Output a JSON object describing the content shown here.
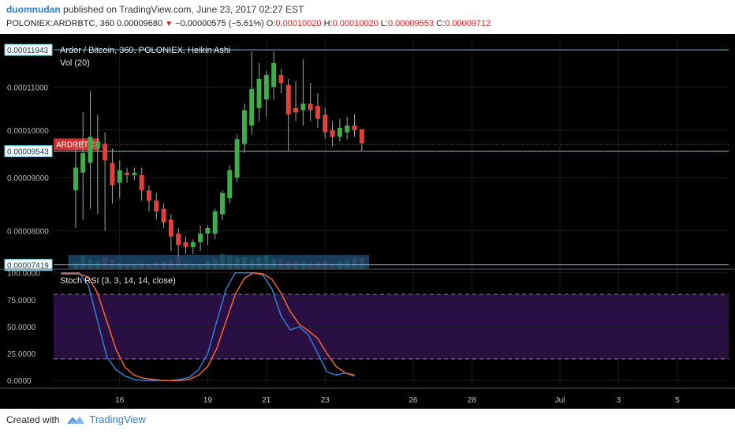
{
  "header": {
    "user": "duomnudan",
    "published_text": "published on TradingView.com, June 23, 2017 02:27 EST",
    "symbol": "POLONIEX:ARDRBTC, 360",
    "last": "0.00009680",
    "change": "−0.00000575 (−5.61%)",
    "open_label": "O:",
    "open": "0.00010020",
    "high_label": "H:",
    "high": "0.00010020",
    "low_label": "L:",
    "low": "0.00009553",
    "close_label": "C:",
    "close": "0.00009712"
  },
  "main_legend": {
    "title": "Ardor / Bitcoin, 360, POLONIEX, Heikin Ashi",
    "vol": "Vol (20)"
  },
  "rsi_legend": {
    "title": "Stoch RSI (3, 3, 14, 14, close)"
  },
  "price_tag": "ARDRBTC",
  "footer": {
    "created": "Created with",
    "brand": "TradingView"
  },
  "colors": {
    "bg": "#000000",
    "grid": "#1c1c1c",
    "up": "#3fae49",
    "down": "#e0413c",
    "k_line": "#2d7fd8",
    "d_line": "#f2672c",
    "rsi_band": "#2a0f45",
    "hline": "#5fd0e8",
    "axis_text": "#b8b8b8"
  },
  "chart_data": [
    {
      "type": "candlestick",
      "name": "ARDRBTC Heikin Ashi",
      "price_axis": {
        "ticks": [
          "0.00011000",
          "0.00010000",
          "0.00009000",
          "0.00008000"
        ],
        "ylim": [
          7.35e-05,
          0.000122
        ],
        "log_scale": true
      },
      "horizontal_lines": [
        {
          "label": "0.00011943",
          "value": 0.00011943
        },
        {
          "label": "0.00009543",
          "value": 9.543e-05
        },
        {
          "label": "0.00007419",
          "value": 7.419e-05
        }
      ],
      "last_price_line": 9.68e-05,
      "x_ticks": [
        {
          "label": "16",
          "i": 6
        },
        {
          "label": "19",
          "i": 18
        },
        {
          "label": "21",
          "i": 26
        },
        {
          "label": "23",
          "i": 34
        },
        {
          "label": "26",
          "i": 46
        },
        {
          "label": "28",
          "i": 54
        },
        {
          "label": "Jul",
          "i": 66
        },
        {
          "label": "3",
          "i": 74
        },
        {
          "label": "5",
          "i": 82
        }
      ],
      "x_range": [
        -3,
        89
      ],
      "candles": [
        {
          "o": 8.75,
          "h": 9.7,
          "l": 8.05,
          "c": 9.2
        },
        {
          "o": 9.1,
          "h": 10.4,
          "l": 8.2,
          "c": 9.5
        },
        {
          "o": 9.3,
          "h": 10.9,
          "l": 8.4,
          "c": 9.85
        },
        {
          "o": 9.6,
          "h": 10.35,
          "l": 8.3,
          "c": 9.75
        },
        {
          "o": 9.7,
          "h": 9.95,
          "l": 8.0,
          "c": 9.35
        },
        {
          "o": 9.3,
          "h": 9.6,
          "l": 8.5,
          "c": 8.85
        },
        {
          "o": 8.9,
          "h": 9.35,
          "l": 8.6,
          "c": 9.15
        },
        {
          "o": 9.1,
          "h": 9.2,
          "l": 8.9,
          "c": 9.05
        },
        {
          "o": 9.05,
          "h": 9.2,
          "l": 8.95,
          "c": 9.1
        },
        {
          "o": 9.05,
          "h": 9.2,
          "l": 8.55,
          "c": 8.75
        },
        {
          "o": 8.75,
          "h": 8.85,
          "l": 8.35,
          "c": 8.55
        },
        {
          "o": 8.55,
          "h": 8.7,
          "l": 8.2,
          "c": 8.35
        },
        {
          "o": 8.4,
          "h": 8.5,
          "l": 8.05,
          "c": 8.15
        },
        {
          "o": 8.2,
          "h": 8.3,
          "l": 7.65,
          "c": 7.9
        },
        {
          "o": 7.95,
          "h": 8.05,
          "l": 7.55,
          "c": 7.75
        },
        {
          "o": 7.8,
          "h": 7.9,
          "l": 7.6,
          "c": 7.72
        },
        {
          "o": 7.72,
          "h": 7.85,
          "l": 7.6,
          "c": 7.8
        },
        {
          "o": 7.8,
          "h": 8.1,
          "l": 7.65,
          "c": 7.95
        },
        {
          "o": 7.95,
          "h": 8.1,
          "l": 7.75,
          "c": 8.05
        },
        {
          "o": 7.95,
          "h": 8.4,
          "l": 7.85,
          "c": 8.35
        },
        {
          "o": 8.3,
          "h": 8.75,
          "l": 8.2,
          "c": 8.7
        },
        {
          "o": 8.6,
          "h": 9.25,
          "l": 8.5,
          "c": 9.15
        },
        {
          "o": 9.0,
          "h": 9.9,
          "l": 8.9,
          "c": 9.8
        },
        {
          "o": 9.7,
          "h": 10.6,
          "l": 9.5,
          "c": 10.45
        },
        {
          "o": 10.1,
          "h": 11.9,
          "l": 9.9,
          "c": 10.95
        },
        {
          "o": 10.5,
          "h": 11.6,
          "l": 10.2,
          "c": 11.2
        },
        {
          "o": 10.7,
          "h": 11.4,
          "l": 10.3,
          "c": 11.3
        },
        {
          "o": 11.0,
          "h": 11.9,
          "l": 10.7,
          "c": 11.6
        },
        {
          "o": 11.3,
          "h": 11.45,
          "l": 10.85,
          "c": 11.1
        },
        {
          "o": 11.05,
          "h": 11.2,
          "l": 9.55,
          "c": 10.35
        },
        {
          "o": 10.5,
          "h": 11.15,
          "l": 10.2,
          "c": 10.4
        },
        {
          "o": 10.45,
          "h": 11.7,
          "l": 10.1,
          "c": 10.6
        },
        {
          "o": 10.6,
          "h": 11.1,
          "l": 10.2,
          "c": 10.45
        },
        {
          "o": 10.55,
          "h": 10.85,
          "l": 10.05,
          "c": 10.25
        },
        {
          "o": 10.35,
          "h": 10.5,
          "l": 9.8,
          "c": 9.95
        },
        {
          "o": 10.0,
          "h": 10.2,
          "l": 9.65,
          "c": 9.85
        },
        {
          "o": 9.85,
          "h": 10.25,
          "l": 9.75,
          "c": 10.05
        },
        {
          "o": 9.95,
          "h": 10.3,
          "l": 9.8,
          "c": 10.1
        },
        {
          "o": 10.1,
          "h": 10.35,
          "l": 9.85,
          "c": 10.0
        },
        {
          "o": 10.02,
          "h": 10.02,
          "l": 9.55,
          "c": 9.71
        }
      ],
      "volume": [
        0.15,
        0.35,
        0.25,
        0.2,
        0.3,
        0.25,
        0.15,
        0.1,
        0.12,
        0.15,
        0.12,
        0.18,
        0.2,
        0.25,
        0.3,
        0.15,
        0.1,
        0.12,
        0.2,
        0.25,
        0.4,
        0.35,
        0.3,
        0.3,
        0.25,
        0.3,
        0.35,
        0.25,
        0.25,
        0.2,
        0.2,
        0.2,
        0.15,
        0.18,
        0.2,
        0.15,
        0.2,
        0.25,
        0.3,
        0.3
      ]
    },
    {
      "type": "line",
      "name": "Stoch RSI",
      "y_ticks": [
        "100.0000",
        "75.0000",
        "50.0000",
        "25.0000",
        "0.0000"
      ],
      "ylim": [
        -5,
        102
      ],
      "band": [
        20,
        80
      ],
      "series": [
        {
          "key": "k",
          "values": [
            100,
            100,
            100,
            88,
            55,
            22,
            10,
            4,
            1,
            0,
            0,
            0,
            0,
            1,
            3,
            10,
            25,
            55,
            85,
            100,
            100,
            100,
            98,
            85,
            60,
            47,
            50,
            42,
            25,
            8,
            5,
            7,
            4
          ]
        },
        {
          "key": "d",
          "values": [
            99,
            99,
            99,
            96,
            81,
            55,
            29,
            12,
            5,
            2,
            1,
            0,
            0,
            0,
            1,
            5,
            13,
            30,
            55,
            80,
            95,
            100,
            99,
            94,
            81,
            64,
            52,
            46,
            39,
            25,
            13,
            7,
            5
          ]
        }
      ]
    }
  ]
}
